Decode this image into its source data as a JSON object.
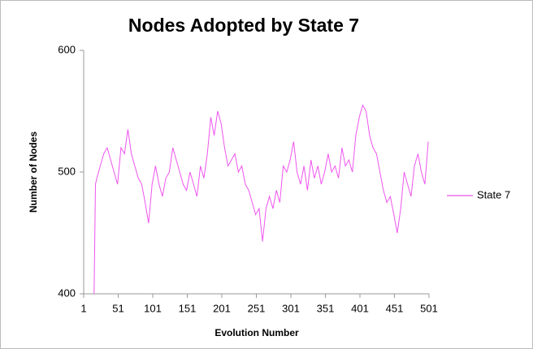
{
  "chart_data": {
    "type": "line",
    "title": "Nodes Adopted by State 7",
    "x_label": "Evolution Number",
    "y_label": "Number of Nodes",
    "x": [
      16,
      18,
      20,
      25,
      30,
      35,
      40,
      45,
      50,
      55,
      60,
      65,
      70,
      75,
      80,
      85,
      90,
      95,
      100,
      105,
      110,
      115,
      120,
      125,
      130,
      135,
      140,
      145,
      150,
      155,
      160,
      165,
      170,
      175,
      180,
      185,
      190,
      195,
      200,
      205,
      210,
      215,
      220,
      225,
      230,
      235,
      240,
      245,
      250,
      255,
      260,
      265,
      270,
      275,
      280,
      285,
      290,
      295,
      300,
      305,
      310,
      315,
      320,
      325,
      330,
      335,
      340,
      345,
      350,
      355,
      360,
      365,
      370,
      375,
      380,
      385,
      390,
      395,
      400,
      405,
      410,
      415,
      420,
      425,
      430,
      435,
      440,
      445,
      450,
      455,
      460,
      465,
      470,
      475,
      480,
      485,
      490,
      495,
      500
    ],
    "series": [
      {
        "name": "State 7",
        "color": "#ee55ee",
        "values": [
          400,
          490,
          495,
          505,
          515,
          520,
          510,
          500,
          490,
          520,
          515,
          535,
          515,
          505,
          495,
          490,
          475,
          458,
          490,
          505,
          490,
          480,
          495,
          500,
          520,
          510,
          500,
          490,
          485,
          500,
          490,
          480,
          505,
          495,
          515,
          545,
          530,
          550,
          540,
          520,
          505,
          510,
          515,
          500,
          505,
          490,
          485,
          475,
          465,
          470,
          443,
          470,
          480,
          470,
          485,
          475,
          505,
          500,
          510,
          525,
          500,
          490,
          505,
          485,
          510,
          495,
          505,
          490,
          500,
          515,
          500,
          505,
          495,
          520,
          505,
          510,
          500,
          530,
          545,
          555,
          550,
          530,
          520,
          515,
          500,
          485,
          475,
          480,
          465,
          450,
          470,
          500,
          490,
          480,
          505,
          515,
          500,
          490,
          525
        ]
      }
    ],
    "xlim": [
      1,
      501
    ],
    "xticks": [
      1,
      51,
      101,
      151,
      201,
      251,
      301,
      351,
      401,
      451,
      501
    ],
    "ylim": [
      400,
      600
    ],
    "yticks": [
      400,
      500,
      600
    ],
    "grid": false,
    "legend": "right"
  }
}
